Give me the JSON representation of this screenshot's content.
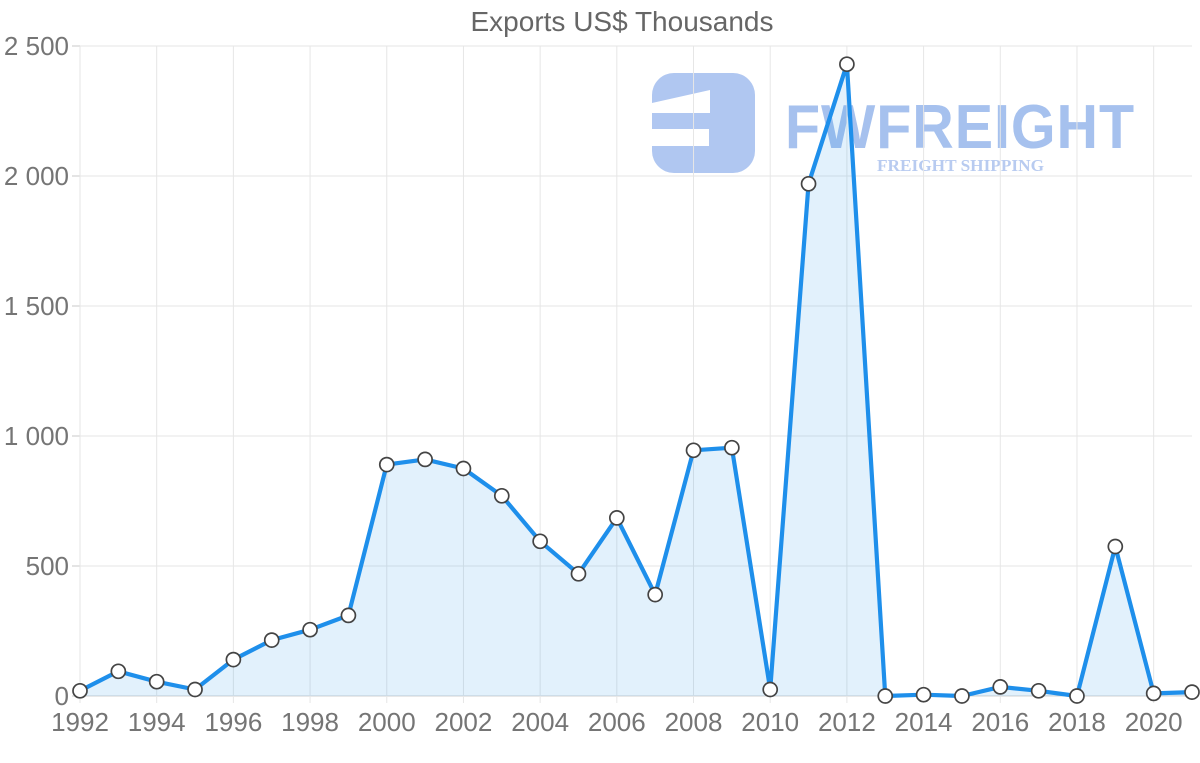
{
  "title": "Exports US$ Thousands",
  "watermark": {
    "brand": "FWFREIGHT",
    "tagline": "FREIGHT SHIPPING",
    "brand_color": "#a6c1ee",
    "tagline_color": "#b8cbf0",
    "icon_color": "#b0c7f1"
  },
  "chart_data": {
    "type": "area",
    "title": "Exports US$ Thousands",
    "x": [
      1992,
      1993,
      1994,
      1995,
      1996,
      1997,
      1998,
      1999,
      2000,
      2001,
      2002,
      2003,
      2004,
      2005,
      2006,
      2007,
      2008,
      2009,
      2010,
      2011,
      2012,
      2013,
      2014,
      2015,
      2016,
      2017,
      2018,
      2019,
      2020,
      2021
    ],
    "series": [
      {
        "name": "Exports US$ Thousands",
        "values": [
          20,
          95,
          55,
          25,
          140,
          215,
          255,
          310,
          890,
          910,
          875,
          770,
          595,
          470,
          685,
          390,
          945,
          955,
          25,
          1970,
          2430,
          0,
          5,
          0,
          35,
          20,
          0,
          575,
          10,
          15
        ]
      }
    ],
    "x_tick_labels": [
      "1992",
      "1994",
      "1996",
      "1998",
      "2000",
      "2002",
      "2004",
      "2006",
      "2008",
      "2010",
      "2012",
      "2014",
      "2016",
      "2018",
      "2020"
    ],
    "y_ticks": [
      0,
      500,
      1000,
      1500,
      2000,
      2500
    ],
    "y_tick_labels": [
      "0",
      "500",
      "1 000",
      "1 500",
      "2 000",
      "2 500"
    ],
    "ylim": [
      0,
      2500
    ],
    "grid": true,
    "legend_position": "none",
    "line_color": "#1e8feb",
    "fill_color": "#1e8feb",
    "fill_opacity": 0.13,
    "marker_fill": "#ffffff",
    "marker_stroke": "#444444",
    "text_color": "#757575",
    "title_color": "#666666"
  }
}
